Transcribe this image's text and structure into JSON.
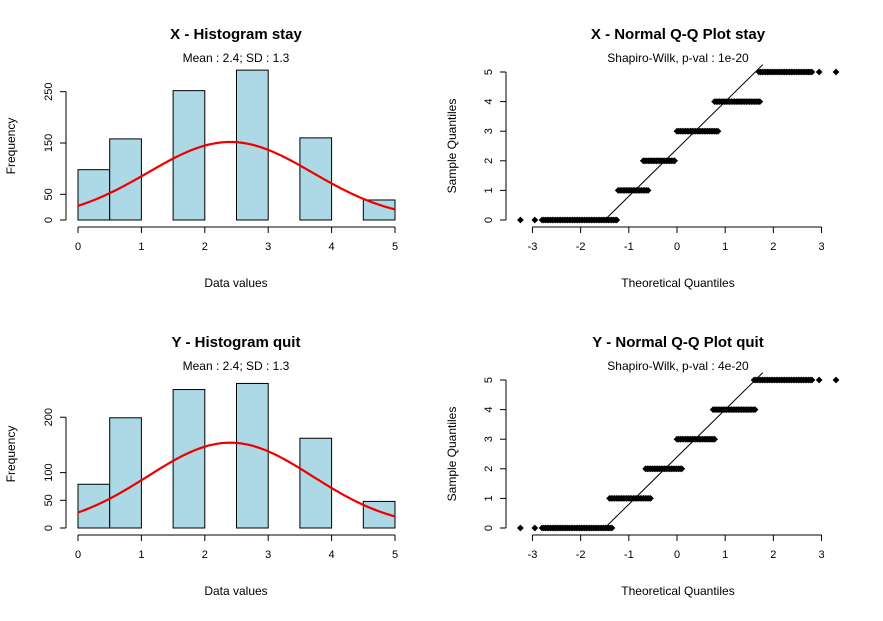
{
  "colors": {
    "bar_fill": "#add8e6",
    "bar_stroke": "#000000",
    "curve": "#ee0000",
    "points": "#000000",
    "reference_line": "#000000"
  },
  "chart_data": [
    {
      "id": "x-hist",
      "type": "bar",
      "title": "X - Histogram stay",
      "subtitle": "Mean : 2.4; SD : 1.3",
      "xlabel": "Data values",
      "ylabel": "Frequency",
      "xlim": [
        0,
        5
      ],
      "ylim": [
        0,
        300
      ],
      "x_ticks": [
        0,
        1,
        2,
        3,
        4,
        5
      ],
      "y_ticks": [
        0,
        50,
        150,
        250
      ],
      "bins": [
        {
          "start": 0.0,
          "end": 0.5,
          "value": 98
        },
        {
          "start": 0.5,
          "end": 1.0,
          "value": 158
        },
        {
          "start": 1.0,
          "end": 1.5,
          "value": 0
        },
        {
          "start": 1.5,
          "end": 2.0,
          "value": 252
        },
        {
          "start": 2.0,
          "end": 2.5,
          "value": 0
        },
        {
          "start": 2.5,
          "end": 3.0,
          "value": 292
        },
        {
          "start": 3.0,
          "end": 3.5,
          "value": 0
        },
        {
          "start": 3.5,
          "end": 4.0,
          "value": 160
        },
        {
          "start": 4.0,
          "end": 4.5,
          "value": 0
        },
        {
          "start": 4.5,
          "end": 5.0,
          "value": 39
        }
      ],
      "normal_curve": {
        "mean": 2.4,
        "sd": 1.3,
        "peak": 152
      },
      "grid": false,
      "legend": "none"
    },
    {
      "id": "x-qq",
      "type": "scatter",
      "title": "X - Normal Q-Q Plot stay",
      "subtitle": "Shapiro-Wilk, p-val : 1e-20",
      "xlabel": "Theoretical Quantiles",
      "ylabel": "Sample Quantiles",
      "xlim": [
        -3.3,
        3.3
      ],
      "ylim": [
        0,
        5
      ],
      "x_ticks": [
        -3,
        -2,
        -1,
        0,
        1,
        2,
        3
      ],
      "y_ticks": [
        0,
        1,
        2,
        3,
        4,
        5
      ],
      "groups": [
        {
          "y": 0,
          "x_from": -2.8,
          "x_to": -1.25,
          "outliers": [
            -3.25,
            -2.95
          ]
        },
        {
          "y": 1,
          "x_from": -1.22,
          "x_to": -0.6,
          "outliers": []
        },
        {
          "y": 2,
          "x_from": -0.7,
          "x_to": -0.05,
          "outliers": []
        },
        {
          "y": 3,
          "x_from": 0.0,
          "x_to": 0.85,
          "outliers": []
        },
        {
          "y": 4,
          "x_from": 0.78,
          "x_to": 1.72,
          "outliers": []
        },
        {
          "y": 5,
          "x_from": 1.7,
          "x_to": 2.8,
          "outliers": [
            2.95,
            3.3
          ]
        }
      ],
      "reference_line": {
        "intercept": 2.4,
        "slope": 1.6
      },
      "grid": false,
      "legend": "none"
    },
    {
      "id": "y-hist",
      "type": "bar",
      "title": "Y - Histogram quit",
      "subtitle": "Mean : 2.4; SD : 1.3",
      "xlabel": "Data values",
      "ylabel": "Frequency",
      "xlim": [
        0,
        5
      ],
      "ylim": [
        0,
        260
      ],
      "x_ticks": [
        0,
        1,
        2,
        3,
        4,
        5
      ],
      "y_ticks": [
        0,
        50,
        100,
        200
      ],
      "bins": [
        {
          "start": 0.0,
          "end": 0.5,
          "value": 79
        },
        {
          "start": 0.5,
          "end": 1.0,
          "value": 199
        },
        {
          "start": 1.0,
          "end": 1.5,
          "value": 0
        },
        {
          "start": 1.5,
          "end": 2.0,
          "value": 250
        },
        {
          "start": 2.0,
          "end": 2.5,
          "value": 0
        },
        {
          "start": 2.5,
          "end": 3.0,
          "value": 261
        },
        {
          "start": 3.0,
          "end": 3.5,
          "value": 0
        },
        {
          "start": 3.5,
          "end": 4.0,
          "value": 162
        },
        {
          "start": 4.0,
          "end": 4.5,
          "value": 0
        },
        {
          "start": 4.5,
          "end": 5.0,
          "value": 48
        }
      ],
      "normal_curve": {
        "mean": 2.4,
        "sd": 1.3,
        "peak": 154
      },
      "grid": false,
      "legend": "none"
    },
    {
      "id": "y-qq",
      "type": "scatter",
      "title": "Y - Normal Q-Q Plot quit",
      "subtitle": "Shapiro-Wilk, p-val : 4e-20",
      "xlabel": "Theoretical Quantiles",
      "ylabel": "Sample Quantiles",
      "xlim": [
        -3.3,
        3.3
      ],
      "ylim": [
        0,
        5
      ],
      "x_ticks": [
        -3,
        -2,
        -1,
        0,
        1,
        2,
        3
      ],
      "y_ticks": [
        0,
        1,
        2,
        3,
        4,
        5
      ],
      "groups": [
        {
          "y": 0,
          "x_from": -2.8,
          "x_to": -1.35,
          "outliers": [
            -3.25,
            -2.95
          ]
        },
        {
          "y": 1,
          "x_from": -1.4,
          "x_to": -0.55,
          "outliers": []
        },
        {
          "y": 2,
          "x_from": -0.65,
          "x_to": 0.1,
          "outliers": []
        },
        {
          "y": 3,
          "x_from": 0.0,
          "x_to": 0.78,
          "outliers": []
        },
        {
          "y": 4,
          "x_from": 0.75,
          "x_to": 1.62,
          "outliers": []
        },
        {
          "y": 5,
          "x_from": 1.6,
          "x_to": 2.8,
          "outliers": [
            2.95,
            3.3
          ]
        }
      ],
      "reference_line": {
        "intercept": 2.4,
        "slope": 1.6
      },
      "grid": false,
      "legend": "none"
    }
  ]
}
